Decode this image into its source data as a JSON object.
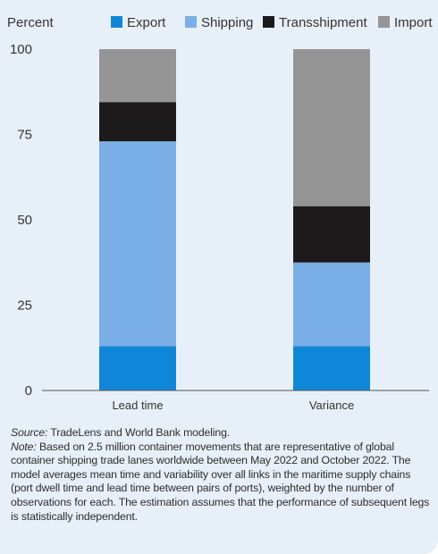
{
  "chart_data": {
    "type": "bar",
    "stacked": true,
    "ylabel": "Percent",
    "ylim": [
      0,
      100
    ],
    "yticks": [
      0,
      25,
      50,
      75,
      100
    ],
    "categories": [
      "Lead time",
      "Variance"
    ],
    "legend_position": "top",
    "grid": false,
    "series": [
      {
        "name": "Export",
        "color": "#0f86d8",
        "values": [
          13,
          13
        ]
      },
      {
        "name": "Shipping",
        "color": "#7aaee6",
        "values": [
          60,
          24.5
        ]
      },
      {
        "name": "Transshipment",
        "color": "#1d1a1c",
        "values": [
          11.5,
          16.5
        ]
      },
      {
        "name": "Import",
        "color": "#959595",
        "values": [
          15.5,
          46
        ]
      }
    ]
  },
  "notes": {
    "source_label": "Source:",
    "source_text": "TradeLens and World Bank modeling.",
    "note_label": "Note:",
    "note_text": "Based on 2.5 million container movements that are representative of global container shipping trade lanes worldwide between May 2022 and October 2022. The model averages mean time and variability over all links in the maritime supply chains (port dwell time and lead time between pairs of ports), weighted by the number of observations for each. The estimation assumes that the performance of subsequent legs is statistically independent."
  }
}
